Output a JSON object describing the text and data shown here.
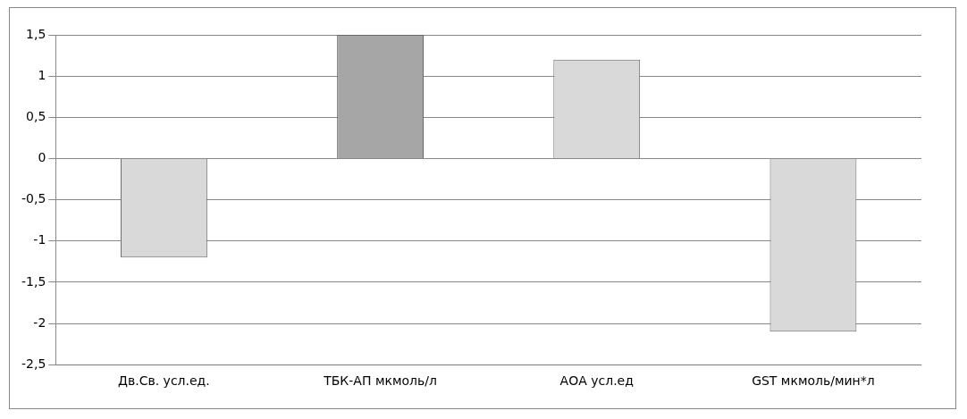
{
  "chart_data": {
    "type": "bar",
    "categories": [
      "Дв.Св. усл.ед.",
      "ТБК-АП мкмоль/л",
      "АОА усл.ед",
      "GST мкмоль/мин*л"
    ],
    "values": [
      -1.2,
      1.5,
      1.2,
      -2.1
    ],
    "colors": [
      "#d9d9d9",
      "#a6a6a6",
      "#d9d9d9",
      "#d9d9d9"
    ],
    "ylim": [
      -2.5,
      1.5
    ],
    "yticks": [
      {
        "value": -2.5,
        "label": "-2,5"
      },
      {
        "value": -2,
        "label": "-2"
      },
      {
        "value": -1.5,
        "label": "-1,5"
      },
      {
        "value": -1,
        "label": "-1"
      },
      {
        "value": -0.5,
        "label": "-0,5"
      },
      {
        "value": 0,
        "label": "0"
      },
      {
        "value": 0.5,
        "label": "0,5"
      },
      {
        "value": 1,
        "label": "1"
      },
      {
        "value": 1.5,
        "label": "1,5"
      }
    ],
    "grid": "y",
    "legend": false
  }
}
